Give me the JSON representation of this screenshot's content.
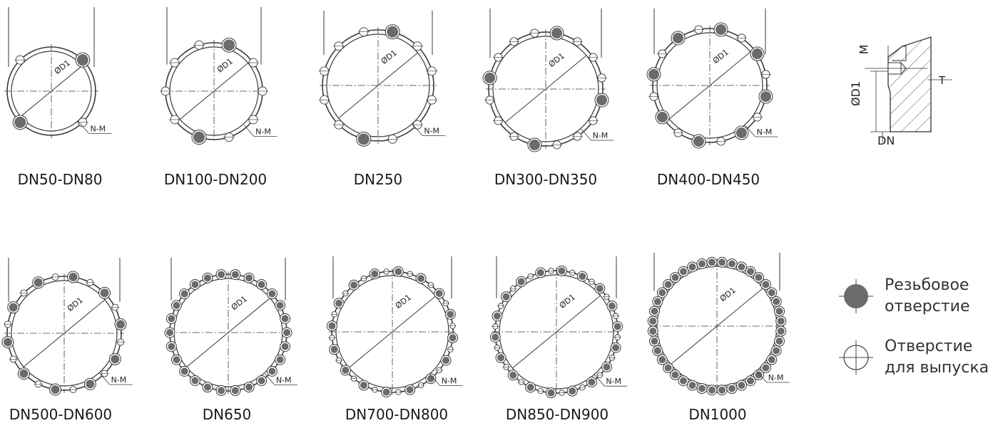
{
  "diagrams": [
    {
      "caption": "DN50-DN80",
      "diameter_label": "ØD1",
      "hole_label": "N-M",
      "threaded_holes": 2,
      "vent_holes": 2
    },
    {
      "caption": "DN100-DN200",
      "diameter_label": "ØD1",
      "hole_label": "N-M",
      "threaded_holes": 2,
      "vent_holes": 8
    },
    {
      "caption": "DN250",
      "diameter_label": "ØD1",
      "hole_label": "N-M",
      "threaded_holes": 2,
      "vent_holes": 10
    },
    {
      "caption": "DN300-DN350",
      "diameter_label": "ØD1",
      "hole_label": "N-M",
      "threaded_holes": 4,
      "vent_holes": 12
    },
    {
      "caption": "DN400-DN450",
      "diameter_label": "ØD1",
      "hole_label": "N-M",
      "threaded_holes": 8,
      "vent_holes": 8
    },
    {
      "caption": "DN500-DN600",
      "diameter_label": "ØD1",
      "hole_label": "N-M",
      "threaded_holes": 10,
      "vent_holes": 10
    },
    {
      "caption": "DN650",
      "diameter_label": "ØD1",
      "hole_label": "N-M",
      "threaded_holes": 18,
      "vent_holes": 8
    },
    {
      "caption": "DN700-DN800",
      "diameter_label": "ØD1",
      "hole_label": "N-M",
      "threaded_holes": 16,
      "vent_holes": 16
    },
    {
      "caption": "DN850-DN900",
      "diameter_label": "ØD1",
      "hole_label": "N-M",
      "threaded_holes": 20,
      "vent_holes": 16
    },
    {
      "caption": "DN1000",
      "diameter_label": "ØD1",
      "hole_label": "N-M",
      "threaded_holes": 28,
      "vent_holes": 12
    }
  ],
  "section": {
    "label_m": "M",
    "label_d1": "ØD1",
    "label_t": "T",
    "label_dn": "DN"
  },
  "legend": {
    "threaded": "Резьбовое отверстие",
    "vent": "Отверстие для выпуска"
  },
  "colors": {
    "line": "#3a3a3a",
    "threaded_fill": "#6b6b6b",
    "hatch": "#555555"
  }
}
